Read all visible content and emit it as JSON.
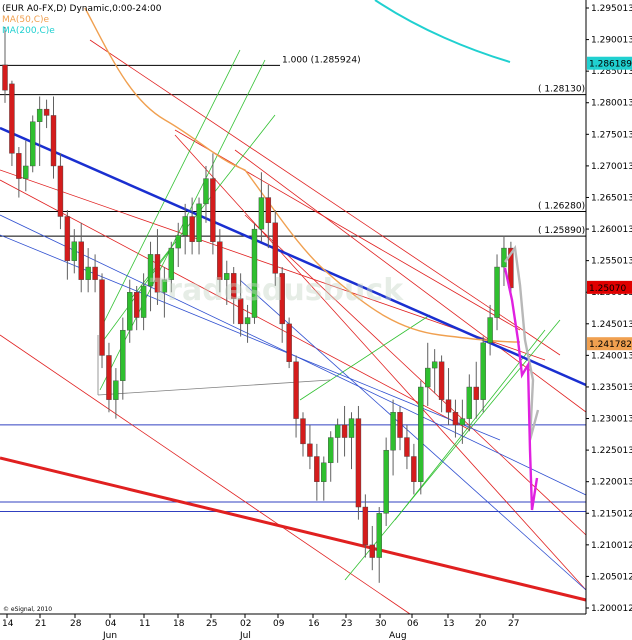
{
  "header": {
    "symbol": "(EUR A0-FX,D) Dynamic,0:00-24:00",
    "ma50": "MA(50,C)e",
    "ma200": "MA(200,C)e"
  },
  "watermark": "Tradesdusbuck",
  "copyright": "© eSignal, 2010",
  "colors": {
    "up": "#2fbf2f",
    "down": "#d41c1c",
    "ma50": "#f0a050",
    "ma200": "#20d0d0",
    "blue_trend": "#1a2fd0",
    "red_trend": "#e02020",
    "projection_magenta": "#e020e0",
    "projection_grey": "#b8b8b8",
    "price_tag_red": "#e00000",
    "price_tag_orange": "#f0a050",
    "price_tag_cyan": "#20d0d0"
  },
  "chart_data": {
    "type": "candlestick",
    "instrument": "EUR A0-FX",
    "timeframe": "D",
    "ylim": [
      1.2,
      1.296
    ],
    "y_ticks": [
      "1.295013",
      "1.290013",
      "1.285013",
      "1.280013",
      "1.275013",
      "1.270013",
      "1.265013",
      "1.260013",
      "1.255013",
      "1.250013",
      "1.245013",
      "1.240013",
      "1.235013",
      "1.230013",
      "1.225013",
      "1.220013",
      "1.215012",
      "1.210012",
      "1.205012",
      "1.200012"
    ],
    "x_ticks": [
      "14",
      "21",
      "28",
      "04",
      "11",
      "18",
      "25",
      "02",
      "09",
      "16",
      "23",
      "30",
      "06",
      "13",
      "20",
      "27"
    ],
    "month_labels": [
      "Jun",
      "Jul",
      "Aug"
    ],
    "horizontal_levels": [
      {
        "label": "1.000 (1.285924)",
        "value": 1.285924
      },
      {
        "label": "( 1.28130)",
        "value": 1.2813
      },
      {
        "label": "( 1.26280)",
        "value": 1.2628
      },
      {
        "label": "( 1.25890)",
        "value": 1.2589
      },
      {
        "label": "",
        "value": 1.229
      },
      {
        "label": "",
        "value": 1.2168
      },
      {
        "label": "",
        "value": 1.2153
      }
    ],
    "price_tags": [
      {
        "label": "1.286189",
        "value": 1.286189,
        "kind": "cyan"
      },
      {
        "label": "1.25070",
        "value": 1.2507,
        "kind": "red"
      },
      {
        "label": "1.241782",
        "value": 1.241782,
        "kind": "orange"
      }
    ],
    "candles": [
      {
        "o": 1.286,
        "h": 1.292,
        "l": 1.28,
        "c": 1.282
      },
      {
        "o": 1.283,
        "h": 1.2835,
        "l": 1.27,
        "c": 1.272
      },
      {
        "o": 1.272,
        "h": 1.273,
        "l": 1.265,
        "c": 1.268
      },
      {
        "o": 1.268,
        "h": 1.274,
        "l": 1.266,
        "c": 1.27
      },
      {
        "o": 1.27,
        "h": 1.278,
        "l": 1.269,
        "c": 1.277
      },
      {
        "o": 1.277,
        "h": 1.281,
        "l": 1.27,
        "c": 1.279
      },
      {
        "o": 1.279,
        "h": 1.2805,
        "l": 1.276,
        "c": 1.278
      },
      {
        "o": 1.278,
        "h": 1.281,
        "l": 1.268,
        "c": 1.27
      },
      {
        "o": 1.27,
        "h": 1.272,
        "l": 1.26,
        "c": 1.262
      },
      {
        "o": 1.262,
        "h": 1.263,
        "l": 1.252,
        "c": 1.255
      },
      {
        "o": 1.255,
        "h": 1.26,
        "l": 1.253,
        "c": 1.258
      },
      {
        "o": 1.258,
        "h": 1.261,
        "l": 1.25,
        "c": 1.252
      },
      {
        "o": 1.252,
        "h": 1.257,
        "l": 1.25,
        "c": 1.254
      },
      {
        "o": 1.254,
        "h": 1.256,
        "l": 1.25,
        "c": 1.252
      },
      {
        "o": 1.252,
        "h": 1.253,
        "l": 1.238,
        "c": 1.24
      },
      {
        "o": 1.24,
        "h": 1.242,
        "l": 1.231,
        "c": 1.233
      },
      {
        "o": 1.233,
        "h": 1.238,
        "l": 1.23,
        "c": 1.236
      },
      {
        "o": 1.236,
        "h": 1.246,
        "l": 1.233,
        "c": 1.244
      },
      {
        "o": 1.244,
        "h": 1.252,
        "l": 1.242,
        "c": 1.25
      },
      {
        "o": 1.25,
        "h": 1.251,
        "l": 1.244,
        "c": 1.246
      },
      {
        "o": 1.246,
        "h": 1.253,
        "l": 1.244,
        "c": 1.251
      },
      {
        "o": 1.251,
        "h": 1.258,
        "l": 1.247,
        "c": 1.256
      },
      {
        "o": 1.256,
        "h": 1.26,
        "l": 1.248,
        "c": 1.25
      },
      {
        "o": 1.25,
        "h": 1.254,
        "l": 1.246,
        "c": 1.252
      },
      {
        "o": 1.252,
        "h": 1.258,
        "l": 1.25,
        "c": 1.257
      },
      {
        "o": 1.257,
        "h": 1.261,
        "l": 1.254,
        "c": 1.259
      },
      {
        "o": 1.259,
        "h": 1.264,
        "l": 1.256,
        "c": 1.262
      },
      {
        "o": 1.262,
        "h": 1.265,
        "l": 1.256,
        "c": 1.258
      },
      {
        "o": 1.258,
        "h": 1.265,
        "l": 1.256,
        "c": 1.264
      },
      {
        "o": 1.264,
        "h": 1.27,
        "l": 1.261,
        "c": 1.268
      },
      {
        "o": 1.268,
        "h": 1.272,
        "l": 1.256,
        "c": 1.258
      },
      {
        "o": 1.258,
        "h": 1.26,
        "l": 1.25,
        "c": 1.252
      },
      {
        "o": 1.252,
        "h": 1.255,
        "l": 1.248,
        "c": 1.253
      },
      {
        "o": 1.253,
        "h": 1.254,
        "l": 1.245,
        "c": 1.249
      },
      {
        "o": 1.249,
        "h": 1.253,
        "l": 1.243,
        "c": 1.245
      },
      {
        "o": 1.245,
        "h": 1.248,
        "l": 1.242,
        "c": 1.246
      },
      {
        "o": 1.246,
        "h": 1.261,
        "l": 1.245,
        "c": 1.26
      },
      {
        "o": 1.26,
        "h": 1.269,
        "l": 1.258,
        "c": 1.265
      },
      {
        "o": 1.265,
        "h": 1.267,
        "l": 1.257,
        "c": 1.261
      },
      {
        "o": 1.261,
        "h": 1.263,
        "l": 1.251,
        "c": 1.253
      },
      {
        "o": 1.253,
        "h": 1.254,
        "l": 1.242,
        "c": 1.245
      },
      {
        "o": 1.245,
        "h": 1.246,
        "l": 1.238,
        "c": 1.239
      },
      {
        "o": 1.239,
        "h": 1.24,
        "l": 1.227,
        "c": 1.23
      },
      {
        "o": 1.23,
        "h": 1.231,
        "l": 1.224,
        "c": 1.226
      },
      {
        "o": 1.226,
        "h": 1.229,
        "l": 1.222,
        "c": 1.224
      },
      {
        "o": 1.224,
        "h": 1.226,
        "l": 1.217,
        "c": 1.22
      },
      {
        "o": 1.22,
        "h": 1.224,
        "l": 1.217,
        "c": 1.223
      },
      {
        "o": 1.223,
        "h": 1.228,
        "l": 1.22,
        "c": 1.227
      },
      {
        "o": 1.227,
        "h": 1.23,
        "l": 1.223,
        "c": 1.229
      },
      {
        "o": 1.229,
        "h": 1.232,
        "l": 1.224,
        "c": 1.227
      },
      {
        "o": 1.227,
        "h": 1.231,
        "l": 1.222,
        "c": 1.23
      },
      {
        "o": 1.23,
        "h": 1.232,
        "l": 1.214,
        "c": 1.216
      },
      {
        "o": 1.216,
        "h": 1.218,
        "l": 1.208,
        "c": 1.21
      },
      {
        "o": 1.21,
        "h": 1.213,
        "l": 1.206,
        "c": 1.208
      },
      {
        "o": 1.208,
        "h": 1.216,
        "l": 1.204,
        "c": 1.215
      },
      {
        "o": 1.215,
        "h": 1.227,
        "l": 1.213,
        "c": 1.225
      },
      {
        "o": 1.225,
        "h": 1.233,
        "l": 1.221,
        "c": 1.231
      },
      {
        "o": 1.231,
        "h": 1.232,
        "l": 1.225,
        "c": 1.227
      },
      {
        "o": 1.227,
        "h": 1.229,
        "l": 1.222,
        "c": 1.224
      },
      {
        "o": 1.224,
        "h": 1.226,
        "l": 1.218,
        "c": 1.22
      },
      {
        "o": 1.22,
        "h": 1.236,
        "l": 1.218,
        "c": 1.235
      },
      {
        "o": 1.235,
        "h": 1.242,
        "l": 1.232,
        "c": 1.238
      },
      {
        "o": 1.238,
        "h": 1.241,
        "l": 1.234,
        "c": 1.239
      },
      {
        "o": 1.239,
        "h": 1.24,
        "l": 1.231,
        "c": 1.233
      },
      {
        "o": 1.233,
        "h": 1.238,
        "l": 1.229,
        "c": 1.231
      },
      {
        "o": 1.231,
        "h": 1.233,
        "l": 1.227,
        "c": 1.229
      },
      {
        "o": 1.229,
        "h": 1.233,
        "l": 1.226,
        "c": 1.23
      },
      {
        "o": 1.23,
        "h": 1.237,
        "l": 1.228,
        "c": 1.235
      },
      {
        "o": 1.235,
        "h": 1.239,
        "l": 1.23,
        "c": 1.233
      },
      {
        "o": 1.233,
        "h": 1.243,
        "l": 1.231,
        "c": 1.242
      },
      {
        "o": 1.242,
        "h": 1.248,
        "l": 1.24,
        "c": 1.246
      },
      {
        "o": 1.246,
        "h": 1.256,
        "l": 1.244,
        "c": 1.254
      },
      {
        "o": 1.254,
        "h": 1.259,
        "l": 1.251,
        "c": 1.257
      },
      {
        "o": 1.257,
        "h": 1.258,
        "l": 1.25,
        "c": 1.2507
      }
    ]
  }
}
